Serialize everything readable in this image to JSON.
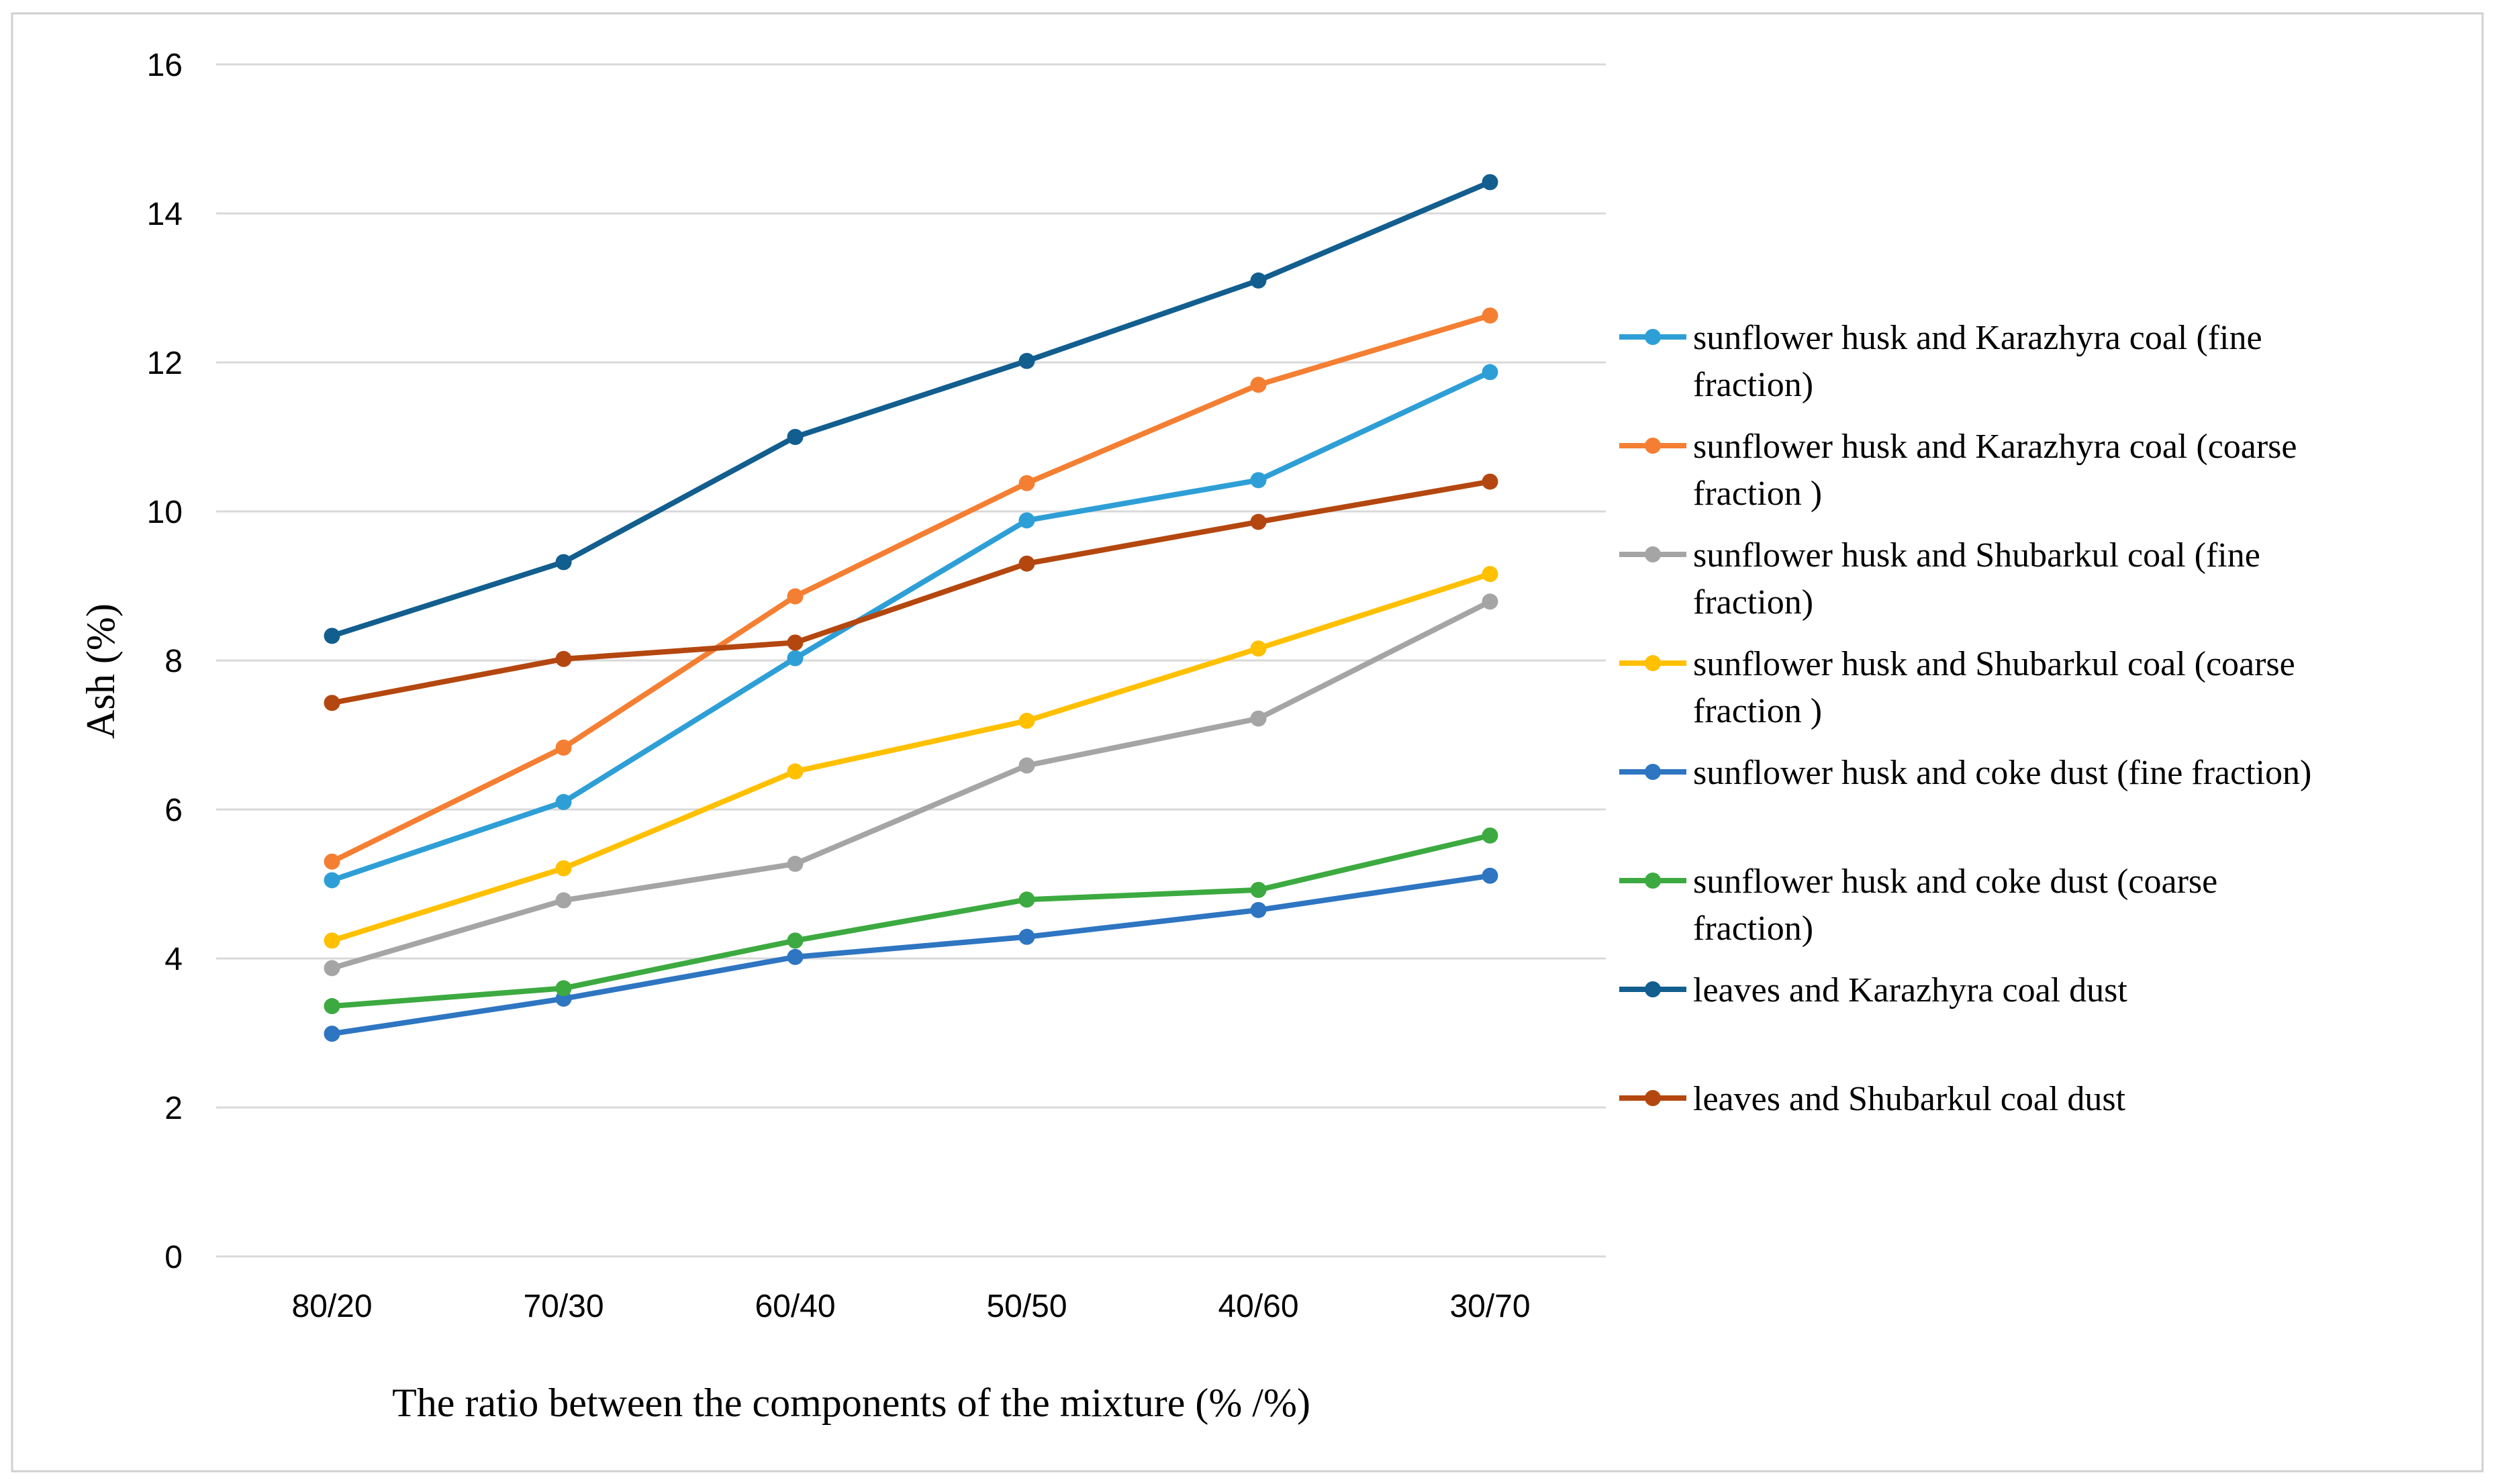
{
  "chart_data": {
    "type": "line",
    "title": "",
    "xlabel": "The ratio between the components of the mixture (% /%)",
    "ylabel": "Ash (%)",
    "categories": [
      "80/20",
      "70/30",
      "60/40",
      "50/50",
      "40/60",
      "30/70"
    ],
    "ylim": [
      0,
      16
    ],
    "yticks": [
      0,
      2,
      4,
      6,
      8,
      10,
      12,
      14,
      16
    ],
    "grid": true,
    "legend_position": "right",
    "series": [
      {
        "name": "sunflower husk and Karazhyra coal (fine fraction)",
        "legend_lines": [
          "sunflower husk and Karazhyra coal (fine",
          "fraction)"
        ],
        "color": "#2E9FD6",
        "values": [
          5.05,
          6.1,
          8.03,
          9.88,
          10.42,
          11.87
        ]
      },
      {
        "name": "sunflower husk and Karazhyra coal (coarse fraction )",
        "legend_lines": [
          "sunflower husk and Karazhyra coal (coarse",
          "fraction )"
        ],
        "color": "#F47F33",
        "values": [
          5.3,
          6.83,
          8.86,
          10.38,
          11.7,
          12.63
        ]
      },
      {
        "name": "sunflower husk and Shubarkul coal (fine fraction)",
        "legend_lines": [
          "sunflower husk and Shubarkul coal (fine",
          "fraction)"
        ],
        "color": "#A5A5A5",
        "values": [
          3.87,
          4.78,
          5.27,
          6.59,
          7.22,
          8.79
        ]
      },
      {
        "name": "sunflower husk and Shubarkul coal (coarse fraction )",
        "legend_lines": [
          "sunflower husk and Shubarkul coal (coarse",
          "fraction )"
        ],
        "color": "#FFC000",
        "values": [
          4.24,
          5.21,
          6.51,
          7.19,
          8.16,
          9.16
        ]
      },
      {
        "name": "sunflower husk and coke dust (fine fraction)",
        "legend_lines": [
          "sunflower husk and coke dust (fine fraction)"
        ],
        "color": "#2E75C2",
        "values": [
          2.99,
          3.46,
          4.02,
          4.29,
          4.65,
          5.11
        ]
      },
      {
        "name": "sunflower husk and coke dust (coarse fraction)",
        "legend_lines": [
          "sunflower husk and coke dust (coarse",
          "fraction)"
        ],
        "color": "#3CAA40",
        "values": [
          3.36,
          3.6,
          4.24,
          4.79,
          4.92,
          5.65
        ]
      },
      {
        "name": "leaves and Karazhyra coal dust",
        "legend_lines": [
          "leaves and Karazhyra coal dust"
        ],
        "color": "#125E8F",
        "values": [
          8.33,
          9.32,
          11.0,
          12.02,
          13.1,
          14.42
        ]
      },
      {
        "name": "leaves and Shubarkul coal dust",
        "legend_lines": [
          "leaves and Shubarkul coal dust"
        ],
        "color": "#B4470F",
        "values": [
          7.43,
          8.02,
          8.24,
          9.3,
          9.86,
          10.4
        ]
      }
    ]
  }
}
